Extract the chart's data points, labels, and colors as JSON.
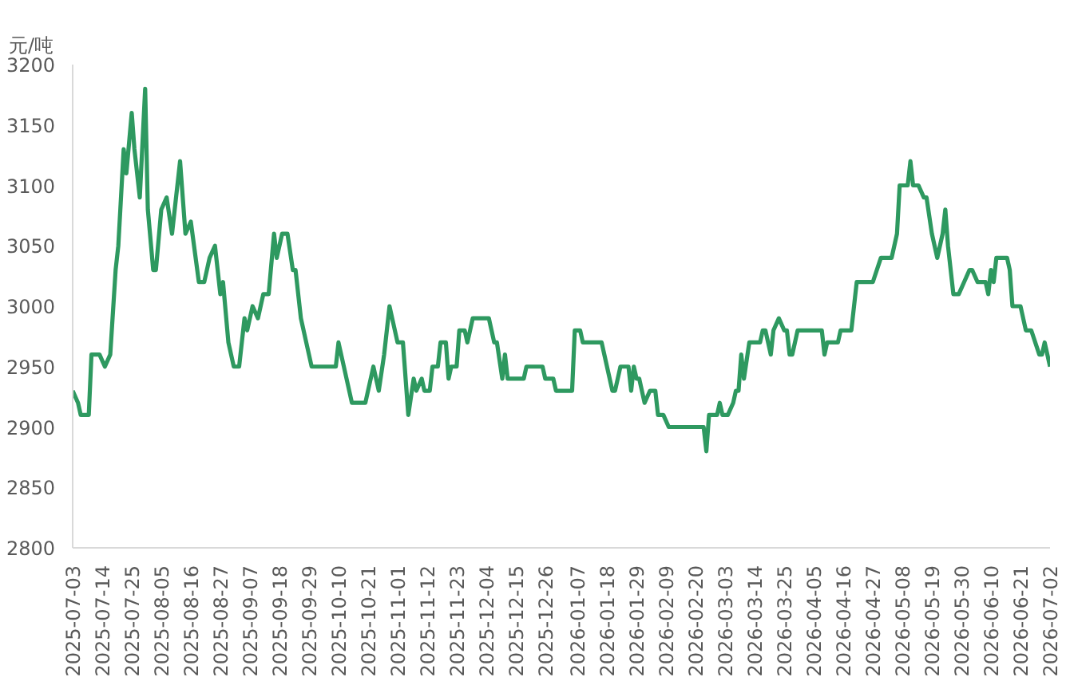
{
  "chart_data": {
    "type": "line",
    "ylabel": "元/吨",
    "x": [
      "2025-07-03",
      "2025-07-05",
      "2025-07-06",
      "2025-07-09",
      "2025-07-10",
      "2025-07-13",
      "2025-07-15",
      "2025-07-17",
      "2025-07-19",
      "2025-07-20",
      "2025-07-22",
      "2025-07-23",
      "2025-07-25",
      "2025-07-26",
      "2025-07-28",
      "2025-07-30",
      "2025-07-31",
      "2025-08-02",
      "2025-08-03",
      "2025-08-05",
      "2025-08-07",
      "2025-08-09",
      "2025-08-12",
      "2025-08-14",
      "2025-08-16",
      "2025-08-19",
      "2025-08-21",
      "2025-08-23",
      "2025-08-25",
      "2025-08-27",
      "2025-08-28",
      "2025-08-30",
      "2025-09-01",
      "2025-09-03",
      "2025-09-05",
      "2025-09-06",
      "2025-09-08",
      "2025-09-10",
      "2025-09-12",
      "2025-09-14",
      "2025-09-16",
      "2025-09-17",
      "2025-09-19",
      "2025-09-21",
      "2025-09-23",
      "2025-09-24",
      "2025-09-26",
      "2025-09-28",
      "2025-09-30",
      "2025-10-09",
      "2025-10-10",
      "2025-10-12",
      "2025-10-15",
      "2025-10-20",
      "2025-10-23",
      "2025-10-25",
      "2025-10-27",
      "2025-10-29",
      "2025-11-01",
      "2025-11-03",
      "2025-11-05",
      "2025-11-07",
      "2025-11-08",
      "2025-11-10",
      "2025-11-11",
      "2025-11-13",
      "2025-11-14",
      "2025-11-16",
      "2025-11-17",
      "2025-11-19",
      "2025-11-20",
      "2025-11-21",
      "2025-11-23",
      "2025-11-24",
      "2025-11-26",
      "2025-11-27",
      "2025-11-29",
      "2025-12-05",
      "2025-12-07",
      "2025-12-08",
      "2025-12-10",
      "2025-12-11",
      "2025-12-12",
      "2025-12-18",
      "2025-12-19",
      "2025-12-25",
      "2025-12-26",
      "2025-12-29",
      "2025-12-30",
      "2026-01-05",
      "2026-01-06",
      "2026-01-08",
      "2026-01-09",
      "2026-01-16",
      "2026-01-17",
      "2026-01-20",
      "2026-01-21",
      "2026-01-23",
      "2026-01-26",
      "2026-01-27",
      "2026-01-28",
      "2026-01-29",
      "2026-01-30",
      "2026-02-01",
      "2026-02-03",
      "2026-02-05",
      "2026-02-06",
      "2026-02-08",
      "2026-02-10",
      "2026-02-23",
      "2026-02-24",
      "2026-02-25",
      "2026-02-28",
      "2026-03-01",
      "2026-03-02",
      "2026-03-04",
      "2026-03-06",
      "2026-03-07",
      "2026-03-08",
      "2026-03-09",
      "2026-03-10",
      "2026-03-12",
      "2026-03-16",
      "2026-03-17",
      "2026-03-18",
      "2026-03-20",
      "2026-03-21",
      "2026-03-23",
      "2026-03-25",
      "2026-03-26",
      "2026-03-27",
      "2026-03-28",
      "2026-03-30",
      "2026-04-08",
      "2026-04-09",
      "2026-04-10",
      "2026-04-14",
      "2026-04-15",
      "2026-04-19",
      "2026-04-21",
      "2026-04-27",
      "2026-04-30",
      "2026-05-04",
      "2026-05-06",
      "2026-05-07",
      "2026-05-10",
      "2026-05-11",
      "2026-05-12",
      "2026-05-14",
      "2026-05-16",
      "2026-05-17",
      "2026-05-19",
      "2026-05-21",
      "2026-05-23",
      "2026-05-24",
      "2026-05-25",
      "2026-05-27",
      "2026-05-29",
      "2026-05-31",
      "2026-06-02",
      "2026-06-03",
      "2026-06-05",
      "2026-06-08",
      "2026-06-09",
      "2026-06-10",
      "2026-06-11",
      "2026-06-12",
      "2026-06-16",
      "2026-06-17",
      "2026-06-18",
      "2026-06-21",
      "2026-06-23",
      "2026-06-25",
      "2026-06-28",
      "2026-06-29",
      "2026-06-30",
      "2026-07-02"
    ],
    "series": [
      {
        "color": "#2e9960",
        "values": [
          2930,
          2920,
          2910,
          2910,
          2960,
          2960,
          2950,
          2960,
          3030,
          3050,
          3130,
          3110,
          3160,
          3130,
          3090,
          3180,
          3080,
          3030,
          3030,
          3080,
          3090,
          3060,
          3120,
          3060,
          3070,
          3020,
          3020,
          3040,
          3050,
          3010,
          3020,
          2970,
          2950,
          2950,
          2990,
          2980,
          3000,
          2990,
          3010,
          3010,
          3060,
          3040,
          3060,
          3060,
          3030,
          3030,
          2990,
          2970,
          2950,
          2950,
          2970,
          2950,
          2920,
          2920,
          2950,
          2930,
          2960,
          3000,
          2970,
          2970,
          2910,
          2940,
          2930,
          2940,
          2930,
          2930,
          2950,
          2950,
          2970,
          2970,
          2940,
          2950,
          2950,
          2980,
          2980,
          2970,
          2990,
          2990,
          2970,
          2970,
          2940,
          2960,
          2940,
          2940,
          2950,
          2950,
          2940,
          2940,
          2930,
          2930,
          2980,
          2980,
          2970,
          2970,
          2960,
          2930,
          2930,
          2950,
          2950,
          2930,
          2950,
          2940,
          2940,
          2920,
          2930,
          2930,
          2910,
          2910,
          2900,
          2900,
          2880,
          2910,
          2910,
          2920,
          2910,
          2910,
          2920,
          2930,
          2930,
          2960,
          2940,
          2970,
          2970,
          2980,
          2980,
          2960,
          2980,
          2990,
          2980,
          2980,
          2960,
          2960,
          2980,
          2980,
          2960,
          2970,
          2970,
          2980,
          2980,
          3020,
          3020,
          3040,
          3040,
          3060,
          3100,
          3100,
          3120,
          3100,
          3100,
          3090,
          3090,
          3060,
          3040,
          3060,
          3080,
          3050,
          3010,
          3010,
          3020,
          3030,
          3030,
          3020,
          3020,
          3010,
          3030,
          3020,
          3040,
          3040,
          3030,
          3000,
          3000,
          2980,
          2980,
          2960,
          2960,
          2970,
          2950
        ]
      }
    ],
    "xlim": [
      "2025-07-03",
      "2026-07-02"
    ],
    "xticks": [
      "2025-07-03",
      "2025-07-14",
      "2025-07-25",
      "2025-08-05",
      "2025-08-16",
      "2025-08-27",
      "2025-09-07",
      "2025-09-18",
      "2025-09-29",
      "2025-10-10",
      "2025-10-21",
      "2025-11-01",
      "2025-11-12",
      "2025-11-23",
      "2025-12-04",
      "2025-12-15",
      "2025-12-26",
      "2026-01-07",
      "2026-01-18",
      "2026-01-29",
      "2026-02-09",
      "2026-02-20",
      "2026-03-03",
      "2026-03-14",
      "2026-03-25",
      "2026-04-05",
      "2026-04-16",
      "2026-04-27",
      "2026-05-08",
      "2026-05-19",
      "2026-05-30",
      "2026-06-10",
      "2026-06-21",
      "2026-07-02"
    ],
    "ylim": [
      2800,
      3200
    ],
    "yticks": [
      2800,
      2850,
      2900,
      2950,
      3000,
      3050,
      3100,
      3150,
      3200
    ],
    "grid": false,
    "marker": "none",
    "line_style": "solid"
  }
}
